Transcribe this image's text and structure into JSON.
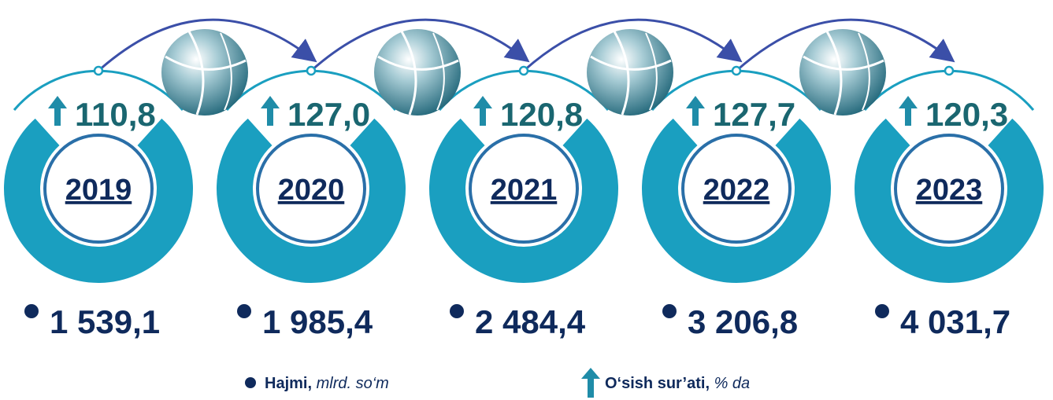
{
  "items": [
    {
      "year": "2019",
      "growth": "110,8",
      "volume": "1 539,1"
    },
    {
      "year": "2020",
      "growth": "127,0",
      "volume": "1 985,4"
    },
    {
      "year": "2021",
      "growth": "120,8",
      "volume": "2 484,4"
    },
    {
      "year": "2022",
      "growth": "127,7",
      "volume": "3 206,8"
    },
    {
      "year": "2023",
      "growth": "120,3",
      "volume": "4 031,7"
    }
  ],
  "legend": {
    "volume": {
      "label": "Hajmi,",
      "unit": "mlrd. so‘m"
    },
    "growth": {
      "label": "O‘sish sur’ati,",
      "unit": "% da"
    }
  }
}
